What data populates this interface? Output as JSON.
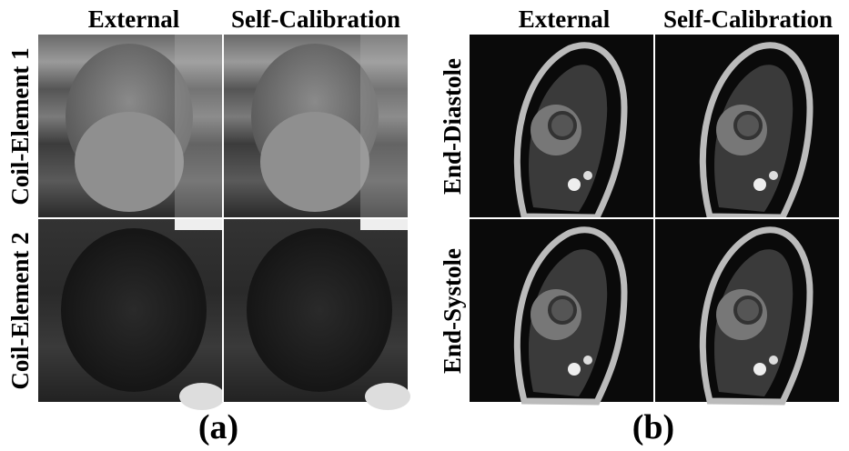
{
  "panels": [
    {
      "columns": [
        "External",
        "Self-Calibration"
      ],
      "rows": [
        "Coil-Element 1",
        "Coil-Element 2"
      ],
      "caption": "(a)"
    },
    {
      "columns": [
        "External",
        "Self-Calibration"
      ],
      "rows": [
        "End-Diastole",
        "End-Systole"
      ],
      "caption": "(b)"
    }
  ]
}
